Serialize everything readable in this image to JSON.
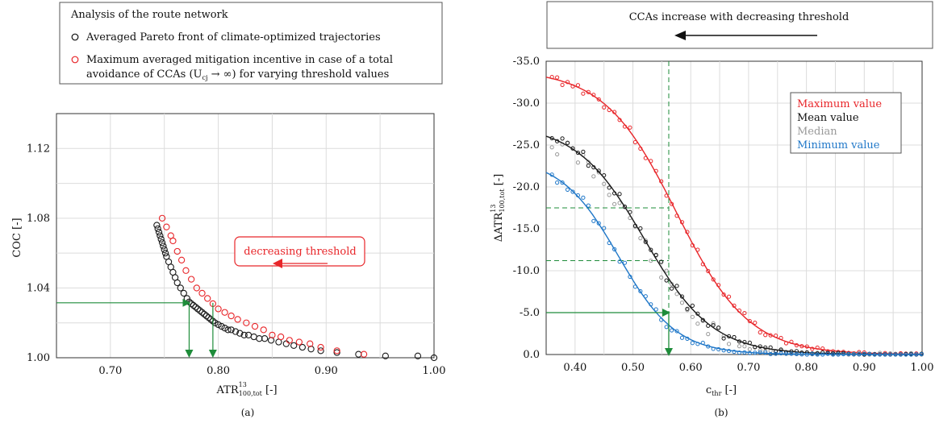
{
  "colors": {
    "black": "#1a1a1a",
    "red": "#e8262a",
    "gray": "#999999",
    "blue": "#1f77c8",
    "green": "#1e8c3a",
    "grid": "#dcdcdc"
  },
  "panel_a": {
    "legend": {
      "title": "Analysis of the route network",
      "item1": "Averaged Pareto front of climate-optimized trajectories",
      "item2_line1": "Maximum averaged mitigation incentive in case of a total",
      "item2_line2": "avoidance of CCAs (U",
      "item2_sub": "cj",
      "item2_line2b": " → ∞) for varying threshold values"
    },
    "annotation": "decreasing threshold",
    "ylabel": "COC [-]",
    "xlabel_main": "ATR",
    "xlabel_sup": "13",
    "xlabel_sub": "100,tot",
    "xlabel_unit": " [-]",
    "caption": "(a)"
  },
  "panel_b": {
    "header": "CCAs increase with decreasing threshold",
    "legend": [
      "Maximum value",
      "Mean value",
      "Median",
      "Minimum value"
    ],
    "ylabel_main": "ΔATR",
    "ylabel_sup": "13",
    "ylabel_sub": "100,tot",
    "ylabel_unit": " [-]",
    "xlabel_main": "c",
    "xlabel_sub": "thr",
    "xlabel_unit": " [-]",
    "caption": "(b)"
  },
  "chart_data": [
    {
      "type": "scatter",
      "xlim": [
        0.65,
        1.0
      ],
      "ylim": [
        1.0,
        1.14
      ],
      "xticks": [
        "0.70",
        "0.80",
        "0.90",
        "1.00"
      ],
      "yticks": [
        "1.00",
        "1.04",
        "1.08",
        "1.12"
      ],
      "grid": true,
      "series": [
        {
          "color": "black",
          "x": [
            0.743,
            0.744,
            0.745,
            0.746,
            0.747,
            0.748,
            0.749,
            0.75,
            0.751,
            0.752,
            0.754,
            0.756,
            0.758,
            0.76,
            0.762,
            0.765,
            0.768,
            0.771,
            0.773,
            0.775,
            0.777,
            0.779,
            0.781,
            0.783,
            0.785,
            0.787,
            0.789,
            0.791,
            0.793,
            0.795,
            0.797,
            0.8,
            0.803,
            0.806,
            0.809,
            0.812,
            0.816,
            0.82,
            0.824,
            0.828,
            0.833,
            0.838,
            0.843,
            0.849,
            0.856,
            0.863,
            0.87,
            0.878,
            0.886,
            0.895,
            0.91,
            0.93,
            0.955,
            0.985,
            1.0
          ],
          "y": [
            1.076,
            1.074,
            1.072,
            1.07,
            1.068,
            1.066,
            1.064,
            1.062,
            1.06,
            1.058,
            1.055,
            1.052,
            1.049,
            1.046,
            1.043,
            1.04,
            1.037,
            1.034,
            1.032,
            1.031,
            1.03,
            1.029,
            1.028,
            1.027,
            1.026,
            1.025,
            1.024,
            1.023,
            1.022,
            1.021,
            1.02,
            1.019,
            1.018,
            1.017,
            1.016,
            1.016,
            1.015,
            1.014,
            1.013,
            1.013,
            1.012,
            1.011,
            1.011,
            1.01,
            1.009,
            1.008,
            1.007,
            1.006,
            1.005,
            1.004,
            1.003,
            1.002,
            1.001,
            1.001,
            1.0
          ]
        },
        {
          "color": "red",
          "x": [
            0.748,
            0.752,
            0.756,
            0.758,
            0.762,
            0.766,
            0.77,
            0.775,
            0.78,
            0.785,
            0.79,
            0.795,
            0.8,
            0.806,
            0.812,
            0.818,
            0.826,
            0.834,
            0.842,
            0.85,
            0.858,
            0.866,
            0.875,
            0.885,
            0.895,
            0.91,
            0.935
          ],
          "y": [
            1.08,
            1.075,
            1.07,
            1.067,
            1.061,
            1.056,
            1.05,
            1.045,
            1.04,
            1.037,
            1.034,
            1.031,
            1.028,
            1.026,
            1.024,
            1.022,
            1.02,
            1.018,
            1.016,
            1.013,
            1.012,
            1.01,
            1.009,
            1.008,
            1.006,
            1.004,
            1.002
          ]
        }
      ],
      "arrows": [
        {
          "from": [
            0.65,
            1.0315
          ],
          "to": [
            0.773,
            1.0315
          ]
        },
        {
          "from": [
            0.773,
            1.0315
          ],
          "to": [
            0.773,
            1.0
          ]
        },
        {
          "from": [
            0.795,
            1.0315
          ],
          "to": [
            0.795,
            1.0
          ]
        }
      ]
    },
    {
      "type": "line",
      "xlim": [
        0.35,
        1.0
      ],
      "ylim": [
        0.0,
        -35.0
      ],
      "xticks": [
        "0.40",
        "0.50",
        "0.60",
        "0.70",
        "0.80",
        "0.90",
        "1.00"
      ],
      "yticks": [
        "0.0",
        "-5.0",
        "-10.0",
        "-15.0",
        "-20.0",
        "-25.0",
        "-30.0",
        "-35.0"
      ],
      "grid": true,
      "series": [
        {
          "name": "Maximum value",
          "color": "red",
          "x0": 0.36,
          "amp": -34.0,
          "mid": 0.575,
          "k": 16,
          "noise": 0.5,
          "seed": 3
        },
        {
          "name": "Mean value",
          "color": "black",
          "x0": 0.36,
          "amp": -27.5,
          "mid": 0.52,
          "k": 17,
          "noise": 0.7,
          "seed": 7
        },
        {
          "name": "Median",
          "color": "gray",
          "x0": 0.36,
          "amp": -26.5,
          "mid": 0.52,
          "k": 18,
          "noise": 1.2,
          "seed": 11
        },
        {
          "name": "Minimum value",
          "color": "blue",
          "x0": 0.36,
          "amp": -23.5,
          "mid": 0.475,
          "k": 20,
          "noise": 0.6,
          "seed": 5
        }
      ],
      "reference_lines": {
        "vertical_x": 0.562,
        "horizontal_y": [
          -17.5,
          -11.2
        ]
      },
      "arrows": [
        {
          "from": [
            0.35,
            -5.0
          ],
          "to": [
            0.562,
            -5.0
          ]
        },
        {
          "from": [
            0.562,
            -5.0
          ],
          "to": [
            0.562,
            0.0
          ]
        }
      ]
    }
  ]
}
